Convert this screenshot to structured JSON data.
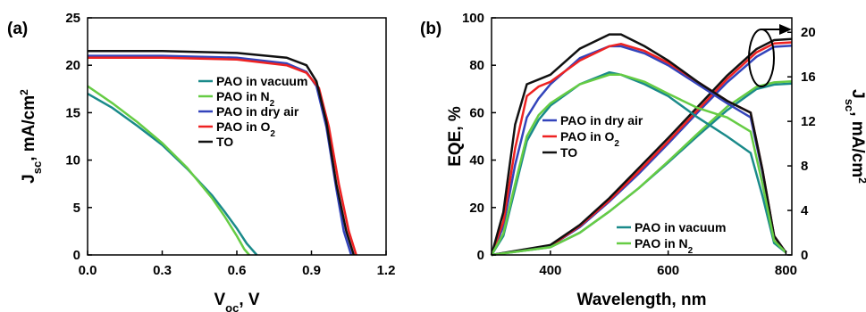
{
  "panels": [
    {
      "label": "(a)",
      "chart_data": {
        "type": "line",
        "title": "",
        "xlabel": "V_oc, V",
        "ylabel": "J_sc, mA/cm²",
        "xlim": [
          0.0,
          1.2
        ],
        "ylim": [
          0,
          25
        ],
        "xticks": [
          "0.0",
          "0.3",
          "0.6",
          "0.9",
          "1.2"
        ],
        "yticks": [
          "0",
          "5",
          "10",
          "15",
          "20",
          "25"
        ],
        "legend": "center",
        "series": [
          {
            "name": "PAO in vacuum",
            "color": "#1a8a8a",
            "x": [
              0,
              0.1,
              0.2,
              0.3,
              0.4,
              0.5,
              0.55,
              0.6,
              0.64,
              0.68
            ],
            "y": [
              17.0,
              15.5,
              13.6,
              11.6,
              9.1,
              6.3,
              4.6,
              2.8,
              1.2,
              0
            ]
          },
          {
            "name": "PAO in N₂",
            "color": "#66cc44",
            "x": [
              0,
              0.1,
              0.2,
              0.3,
              0.4,
              0.5,
              0.55,
              0.6,
              0.63,
              0.65
            ],
            "y": [
              17.8,
              16.0,
              14.0,
              11.8,
              9.2,
              6.0,
              4.1,
              2.0,
              0.6,
              0
            ]
          },
          {
            "name": "PAO in dry air",
            "color": "#3344bb",
            "x": [
              0,
              0.3,
              0.6,
              0.8,
              0.88,
              0.92,
              0.96,
              1.0,
              1.03,
              1.06
            ],
            "y": [
              21.0,
              21.0,
              20.8,
              20.2,
              19.3,
              17.8,
              13.5,
              7.0,
              2.5,
              0
            ]
          },
          {
            "name": "PAO in O₂",
            "color": "#ee2222",
            "x": [
              0,
              0.3,
              0.6,
              0.8,
              0.88,
              0.93,
              0.97,
              1.01,
              1.05,
              1.08
            ],
            "y": [
              20.8,
              20.8,
              20.6,
              20.0,
              19.2,
              17.6,
              13.5,
              7.5,
              2.5,
              0
            ]
          },
          {
            "name": "TO",
            "color": "#111111",
            "x": [
              0,
              0.3,
              0.6,
              0.8,
              0.88,
              0.92,
              0.96,
              1.0,
              1.04,
              1.07
            ],
            "y": [
              21.5,
              21.5,
              21.3,
              20.8,
              20.0,
              18.3,
              14.0,
              7.5,
              2.5,
              0
            ]
          }
        ]
      }
    },
    {
      "label": "(b)",
      "chart_data": {
        "type": "line",
        "title": "",
        "xlabel": "Wavelength, nm",
        "ylabel": "EQE, %",
        "y2label": "J_sc, mA/cm²",
        "xlim": [
          300,
          810
        ],
        "ylim": [
          0,
          100
        ],
        "y2lim": [
          0,
          21.3
        ],
        "xticks": [
          "400",
          "600",
          "800"
        ],
        "yticks": [
          "0",
          "20",
          "40",
          "60",
          "80",
          "100"
        ],
        "y2ticks": [
          "0",
          "4",
          "8",
          "12",
          "16",
          "20"
        ],
        "legend": "center",
        "eqe_series": [
          {
            "name": "PAO in dry air",
            "color": "#3344bb",
            "x": [
              300,
              320,
              340,
              360,
              380,
              400,
              450,
              500,
              520,
              560,
              600,
              650,
              700,
              740,
              760,
              780,
              800
            ],
            "y": [
              0,
              12,
              38,
              58,
              66,
              72,
              83,
              88,
              88,
              85,
              80,
              72,
              64,
              58,
              35,
              8,
              1
            ]
          },
          {
            "name": "PAO in O₂",
            "color": "#ee2222",
            "x": [
              300,
              320,
              340,
              360,
              380,
              400,
              450,
              500,
              520,
              560,
              600,
              650,
              700,
              740,
              760,
              780,
              800
            ],
            "y": [
              0,
              14,
              45,
              67,
              71,
              73,
              82,
              88,
              89,
              86,
              81,
              73,
              65,
              60,
              36,
              8,
              1
            ]
          },
          {
            "name": "TO",
            "color": "#111111",
            "x": [
              300,
              320,
              340,
              360,
              380,
              400,
              450,
              500,
              520,
              560,
              600,
              650,
              700,
              740,
              760,
              780,
              800
            ],
            "y": [
              0,
              18,
              55,
              72,
              74,
              76,
              87,
              93,
              93,
              88,
              82,
              73,
              65,
              60,
              36,
              8,
              1
            ]
          },
          {
            "name": "PAO in vacuum",
            "color": "#1a8a8a",
            "x": [
              300,
              320,
              340,
              360,
              380,
              400,
              450,
              500,
              520,
              560,
              600,
              650,
              700,
              740,
              760,
              780,
              800
            ],
            "y": [
              0,
              8,
              28,
              48,
              57,
              63,
              72,
              77,
              76,
              72,
              67,
              58,
              50,
              43,
              25,
              5,
              1
            ]
          },
          {
            "name": "PAO in N₂",
            "color": "#66cc44",
            "x": [
              300,
              320,
              340,
              360,
              380,
              400,
              450,
              500,
              520,
              560,
              600,
              650,
              700,
              740,
              760,
              780,
              800
            ],
            "y": [
              0,
              9,
              30,
              50,
              59,
              64,
              72,
              76,
              76,
              73,
              68,
              62,
              58,
              52,
              30,
              6,
              1
            ]
          }
        ],
        "jsc_series": [
          {
            "name": "PAO in dry air",
            "color": "#3344bb",
            "x": [
              300,
              400,
              450,
              500,
              550,
              600,
              650,
              700,
              750,
              780,
              810
            ],
            "y": [
              0,
              0.8,
              2.5,
              4.8,
              7.3,
              10.0,
              12.8,
              15.5,
              17.8,
              18.7,
              18.8
            ]
          },
          {
            "name": "PAO in O₂",
            "color": "#ee2222",
            "x": [
              300,
              400,
              450,
              500,
              550,
              600,
              650,
              700,
              750,
              780,
              810
            ],
            "y": [
              0,
              0.8,
              2.6,
              4.9,
              7.5,
              10.2,
              13.0,
              15.8,
              18.2,
              19.0,
              19.1
            ]
          },
          {
            "name": "TO",
            "color": "#111111",
            "x": [
              300,
              400,
              450,
              500,
              550,
              600,
              650,
              700,
              750,
              780,
              810
            ],
            "y": [
              0,
              0.9,
              2.7,
              5.1,
              7.8,
              10.5,
              13.3,
              16.1,
              18.5,
              19.3,
              19.4
            ]
          },
          {
            "name": "PAO in vacuum",
            "color": "#1a8a8a",
            "x": [
              300,
              400,
              450,
              500,
              550,
              600,
              650,
              700,
              750,
              780,
              810
            ],
            "y": [
              0,
              0.7,
              2.0,
              3.9,
              6.0,
              8.3,
              10.7,
              13.0,
              14.9,
              15.3,
              15.4
            ]
          },
          {
            "name": "PAO in N₂",
            "color": "#66cc44",
            "x": [
              300,
              400,
              450,
              500,
              550,
              600,
              650,
              700,
              750,
              780,
              810
            ],
            "y": [
              0,
              0.7,
              2.0,
              3.9,
              6.0,
              8.4,
              10.9,
              13.3,
              15.1,
              15.5,
              15.6
            ]
          }
        ]
      }
    }
  ]
}
